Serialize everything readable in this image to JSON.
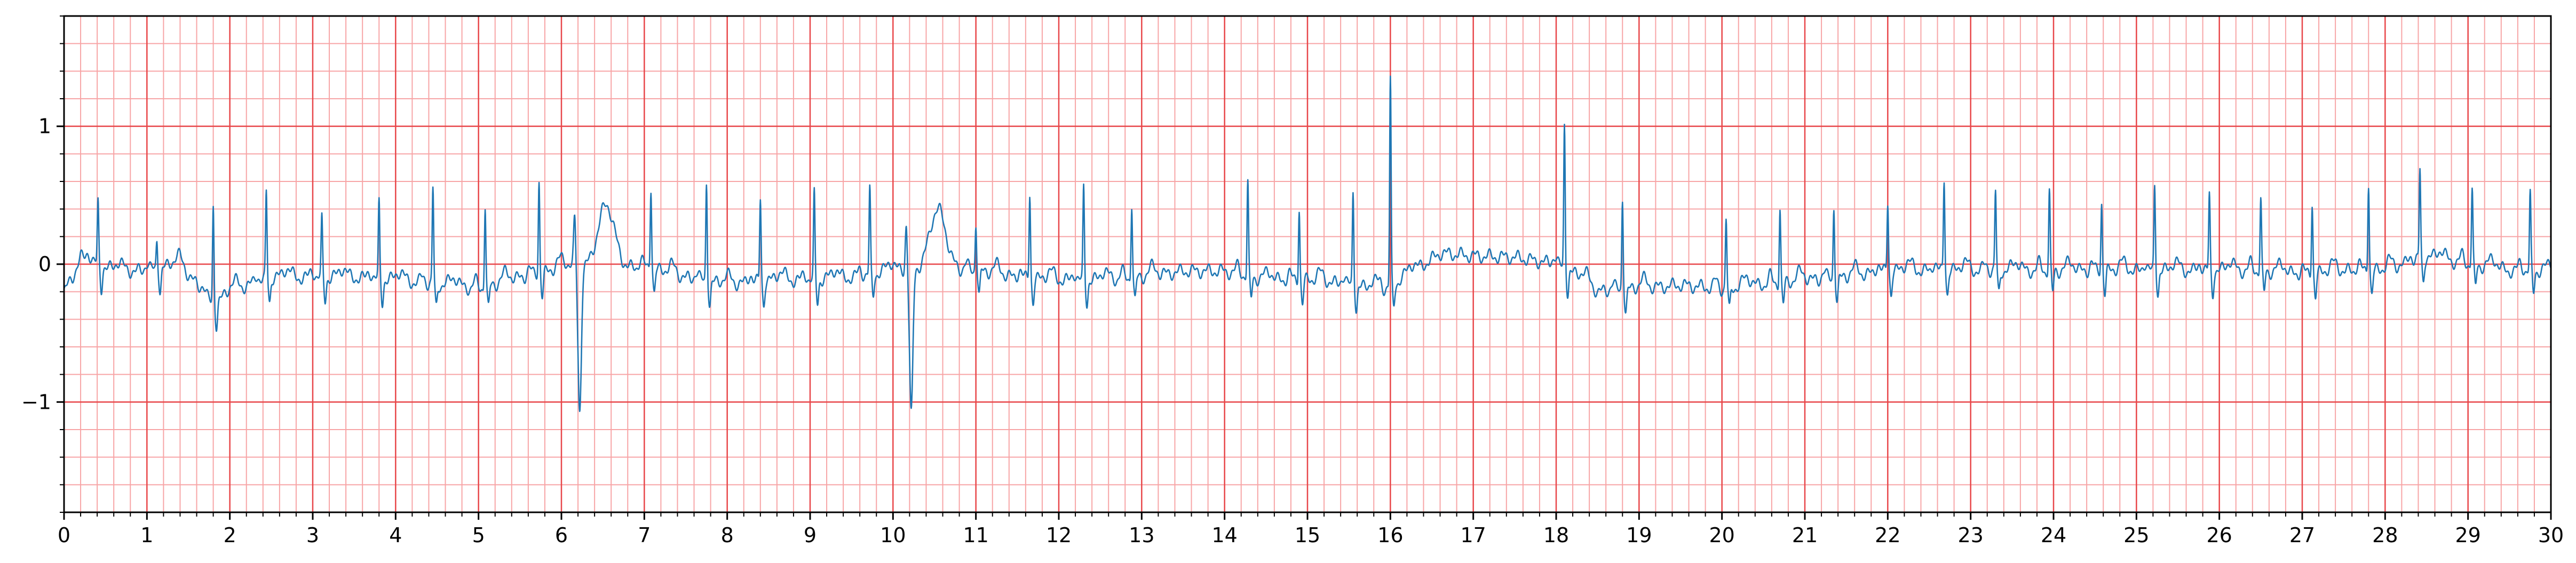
{
  "colors": {
    "background": "#ffffff",
    "major_grid": "#e8474a",
    "minor_grid": "#f7a5a6",
    "trace": "#1f77b4",
    "axes": "#000000"
  },
  "chart_data": {
    "type": "line",
    "title": "",
    "xlabel": "",
    "ylabel": "",
    "xlim": [
      0,
      30
    ],
    "ylim": [
      -1.8,
      1.8
    ],
    "grid": true,
    "major_grid_step": {
      "x": 1,
      "y": 1
    },
    "minor_grid_step": {
      "x": 0.2,
      "y": 0.2
    },
    "x_ticks": [
      0,
      1,
      2,
      3,
      4,
      5,
      6,
      7,
      8,
      9,
      10,
      11,
      12,
      13,
      14,
      15,
      16,
      17,
      18,
      19,
      20,
      21,
      22,
      23,
      24,
      25,
      26,
      27,
      28,
      29,
      30
    ],
    "x_tick_labels": [
      "0",
      "1",
      "2",
      "3",
      "4",
      "5",
      "6",
      "7",
      "8",
      "9",
      "10",
      "11",
      "12",
      "13",
      "14",
      "15",
      "16",
      "17",
      "18",
      "19",
      "20",
      "21",
      "22",
      "23",
      "24",
      "25",
      "26",
      "27",
      "28",
      "29",
      "30"
    ],
    "y_ticks": [
      -1,
      0,
      1
    ],
    "y_tick_labels": [
      "−1",
      "0",
      "1"
    ],
    "series": [
      {
        "baseline": [
          [
            0,
            -0.2
          ],
          [
            0.1,
            -0.1
          ],
          [
            0.2,
            0.05
          ],
          [
            0.6,
            -0.05
          ],
          [
            1.0,
            -0.05
          ],
          [
            1.4,
            0.0
          ],
          [
            1.8,
            -0.3
          ],
          [
            2.0,
            -0.2
          ],
          [
            2.5,
            -0.1
          ],
          [
            3.0,
            -0.1
          ],
          [
            3.5,
            -0.1
          ],
          [
            4.0,
            -0.12
          ],
          [
            4.5,
            -0.15
          ],
          [
            5.0,
            -0.18
          ],
          [
            5.5,
            -0.1
          ],
          [
            5.9,
            -0.05
          ],
          [
            6.1,
            0.0
          ],
          [
            6.5,
            -0.05
          ],
          [
            7.0,
            -0.02
          ],
          [
            7.5,
            -0.1
          ],
          [
            8.0,
            -0.15
          ],
          [
            8.5,
            -0.12
          ],
          [
            9.0,
            -0.12
          ],
          [
            9.5,
            -0.1
          ],
          [
            10.0,
            -0.05
          ],
          [
            10.5,
            -0.05
          ],
          [
            11.0,
            -0.05
          ],
          [
            11.5,
            -0.1
          ],
          [
            12.0,
            -0.12
          ],
          [
            12.5,
            -0.12
          ],
          [
            13.0,
            -0.1
          ],
          [
            13.5,
            -0.05
          ],
          [
            14.0,
            -0.05
          ],
          [
            14.5,
            -0.12
          ],
          [
            15.0,
            -0.12
          ],
          [
            15.5,
            -0.15
          ],
          [
            15.9,
            -0.2
          ],
          [
            16.3,
            -0.05
          ],
          [
            16.6,
            0.08
          ],
          [
            17.0,
            0.06
          ],
          [
            17.5,
            0.05
          ],
          [
            18.0,
            0.0
          ],
          [
            18.3,
            -0.1
          ],
          [
            18.5,
            -0.2
          ],
          [
            19.0,
            -0.18
          ],
          [
            19.5,
            -0.15
          ],
          [
            20.0,
            -0.18
          ],
          [
            20.5,
            -0.15
          ],
          [
            21.0,
            -0.12
          ],
          [
            21.5,
            -0.1
          ],
          [
            22.0,
            -0.05
          ],
          [
            22.5,
            -0.05
          ],
          [
            23.0,
            -0.05
          ],
          [
            23.5,
            -0.05
          ],
          [
            24.0,
            -0.05
          ],
          [
            24.5,
            -0.05
          ],
          [
            25.0,
            -0.05
          ],
          [
            25.5,
            -0.05
          ],
          [
            26.0,
            -0.05
          ],
          [
            26.5,
            -0.05
          ],
          [
            27.0,
            -0.08
          ],
          [
            27.5,
            -0.05
          ],
          [
            28.0,
            -0.05
          ],
          [
            28.5,
            0.05
          ],
          [
            29.0,
            0.0
          ],
          [
            29.5,
            -0.05
          ],
          [
            30.0,
            -0.05
          ]
        ],
        "r_peaks": [
          [
            0.41,
            0.5
          ],
          [
            1.12,
            0.26
          ],
          [
            1.8,
            0.77
          ],
          [
            2.44,
            0.68
          ],
          [
            3.11,
            0.47
          ],
          [
            3.8,
            0.6
          ],
          [
            4.45,
            0.74
          ],
          [
            5.08,
            0.65
          ],
          [
            5.73,
            0.73
          ],
          [
            7.08,
            0.65
          ],
          [
            7.75,
            0.77
          ],
          [
            8.4,
            0.65
          ],
          [
            9.05,
            0.67
          ],
          [
            9.72,
            0.67
          ],
          [
            11.0,
            0.4
          ],
          [
            11.65,
            0.67
          ],
          [
            12.3,
            0.72
          ],
          [
            12.88,
            0.6
          ],
          [
            14.28,
            0.73
          ],
          [
            14.9,
            0.58
          ],
          [
            15.55,
            0.73
          ],
          [
            16.0,
            1.55
          ],
          [
            18.1,
            1.1
          ],
          [
            18.8,
            0.72
          ],
          [
            20.05,
            0.55
          ],
          [
            20.7,
            0.6
          ],
          [
            21.35,
            0.57
          ],
          [
            22.0,
            0.55
          ],
          [
            22.68,
            0.72
          ],
          [
            23.3,
            0.62
          ],
          [
            23.95,
            0.63
          ],
          [
            24.58,
            0.55
          ],
          [
            25.22,
            0.67
          ],
          [
            25.88,
            0.6
          ],
          [
            26.5,
            0.57
          ],
          [
            27.12,
            0.57
          ],
          [
            27.8,
            0.7
          ],
          [
            28.42,
            0.7
          ],
          [
            29.05,
            0.6
          ],
          [
            29.75,
            0.6
          ]
        ],
        "ectopic_beats": [
          {
            "x": 6.22,
            "r": 0.33,
            "s": -1.15,
            "t": 0.48
          },
          {
            "x": 10.22,
            "r": 0.35,
            "s": -1.15,
            "t": 0.45
          }
        ]
      }
    ]
  }
}
